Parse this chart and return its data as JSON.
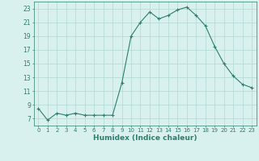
{
  "x": [
    0,
    1,
    2,
    3,
    4,
    5,
    6,
    7,
    8,
    9,
    10,
    11,
    12,
    13,
    14,
    15,
    16,
    17,
    18,
    19,
    20,
    21,
    22,
    23
  ],
  "y": [
    8.5,
    6.8,
    7.8,
    7.5,
    7.8,
    7.5,
    7.5,
    7.5,
    7.5,
    12.2,
    19.0,
    21.0,
    22.5,
    21.5,
    22.0,
    22.8,
    23.2,
    22.0,
    20.5,
    17.5,
    15.0,
    13.2,
    12.0,
    11.5
  ],
  "xlabel": "Humidex (Indice chaleur)",
  "ylabel": "",
  "ylim": [
    6,
    24
  ],
  "xlim": [
    -0.5,
    23.5
  ],
  "yticks": [
    7,
    9,
    11,
    13,
    15,
    17,
    19,
    21,
    23
  ],
  "xticks": [
    0,
    1,
    2,
    3,
    4,
    5,
    6,
    7,
    8,
    9,
    10,
    11,
    12,
    13,
    14,
    15,
    16,
    17,
    18,
    19,
    20,
    21,
    22,
    23
  ],
  "line_color": "#2d7f6e",
  "marker": "+",
  "bg_color": "#d8f0ee",
  "grid_color": "#b0d8d4",
  "text_color": "#2d7f6e",
  "figsize": [
    3.2,
    2.0
  ],
  "dpi": 100
}
